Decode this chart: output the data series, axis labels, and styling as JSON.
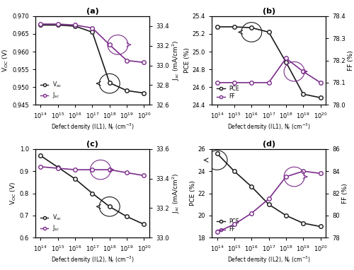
{
  "x_vals": [
    100000000000000.0,
    1000000000000000.0,
    1e+16,
    1e+17,
    1e+18,
    1e+19,
    1e+20
  ],
  "a_voc": [
    0.9675,
    0.9675,
    0.9672,
    0.9655,
    0.9512,
    0.949,
    0.9483
  ],
  "a_jsc": [
    33.42,
    33.42,
    33.41,
    33.38,
    33.21,
    33.05,
    33.03
  ],
  "b_pce": [
    25.28,
    25.28,
    25.27,
    25.22,
    24.88,
    24.52,
    24.48
  ],
  "b_ff": [
    78.1,
    78.1,
    78.1,
    78.1,
    78.21,
    78.15,
    78.1
  ],
  "c_voc": [
    0.97,
    0.918,
    0.865,
    0.8,
    0.74,
    0.695,
    0.66
  ],
  "c_jsc": [
    33.48,
    33.47,
    33.46,
    33.46,
    33.46,
    33.44,
    33.42
  ],
  "d_pce": [
    25.6,
    24.0,
    22.6,
    21.0,
    20.0,
    19.3,
    19.0
  ],
  "d_ff": [
    78.5,
    79.2,
    80.2,
    81.5,
    83.5,
    84.0,
    83.8
  ],
  "color_black": "#1a1a1a",
  "color_purple": "#7B2D8B",
  "panel_labels": [
    "(a)",
    "(b)",
    "(c)",
    "(d)"
  ],
  "a_xlabel": "Defect density (IL1), N$_t$ (cm$^{-3}$)",
  "b_xlabel": "Defect density (IL1), N$_t$ (cm$^{-3}$)",
  "c_xlabel": "Defect density (IL2), N$_t$ (cm$^{-3}$)",
  "d_xlabel": "Defect density (IL2), N$_t$ (cm$^{-3}$)",
  "a_ylabel_l": "V$_{OC}$ (V)",
  "a_ylabel_r": "J$_{sc}$ (mA/cm$^{2}$)",
  "b_ylabel_l": "PCE (%)",
  "b_ylabel_r": "FF (%)",
  "c_ylabel_l": "V$_{OC}$ (V)",
  "c_ylabel_r": "J$_{sc}$ (mA/cm$^{2}$)",
  "d_ylabel_l": "PCE (%)",
  "d_ylabel_r": "FF (%)",
  "a_ylim_l": [
    0.945,
    0.97
  ],
  "a_ylim_r": [
    32.6,
    33.5
  ],
  "b_ylim_l": [
    24.4,
    25.4
  ],
  "b_ylim_r": [
    78.0,
    78.4
  ],
  "c_ylim_l": [
    0.6,
    1.0
  ],
  "c_ylim_r": [
    33.0,
    33.6
  ],
  "d_ylim_l": [
    18.0,
    26.0
  ],
  "d_ylim_r": [
    78.0,
    86.0
  ]
}
